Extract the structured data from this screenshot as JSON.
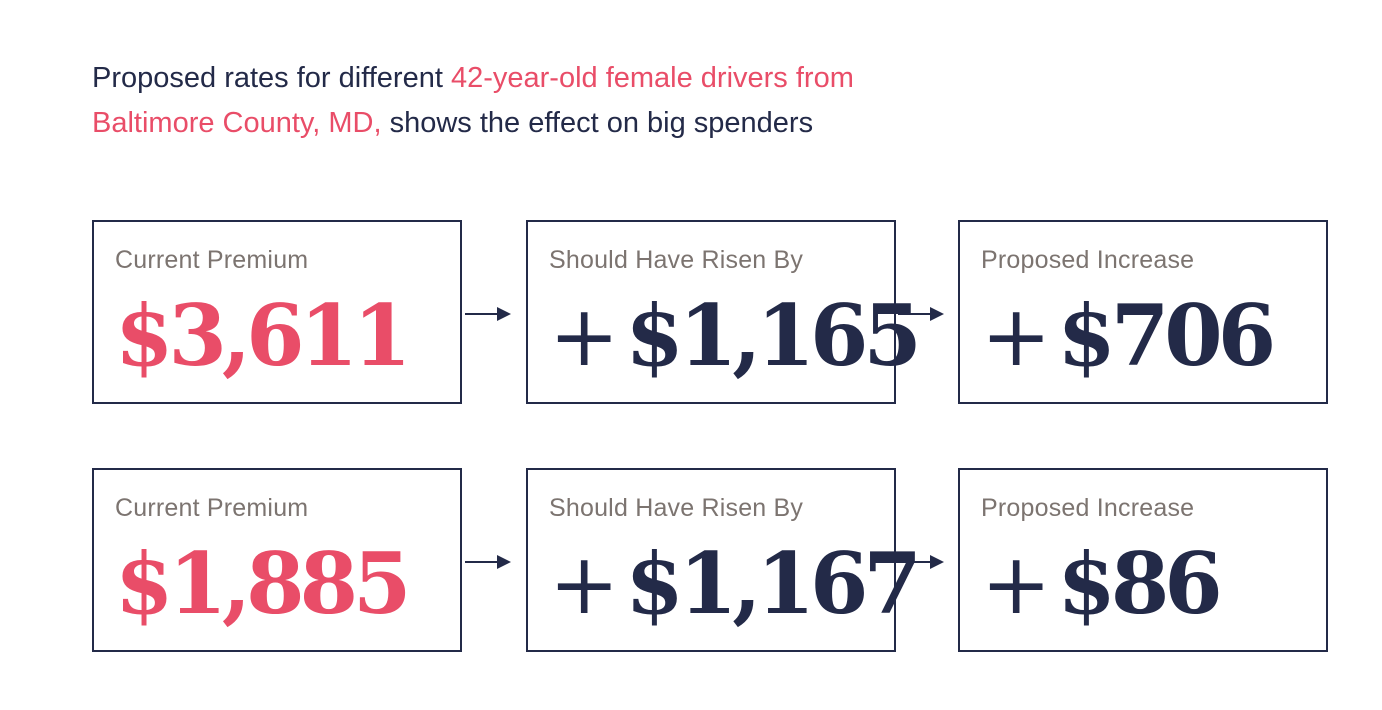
{
  "headline": {
    "part1": "Proposed rates for different ",
    "highlight": "42-year-old female drivers from Baltimore County, MD,",
    "part2": " shows the effect on big spenders"
  },
  "colors": {
    "accent": "#e94d68",
    "navy": "#232a48",
    "label_gray": "#7c7470"
  },
  "rows": [
    {
      "current": {
        "label": "Current Premium",
        "value": "$3,611"
      },
      "should": {
        "label": "Should Have Risen By",
        "plus": "+",
        "value": "$1,165"
      },
      "proposed": {
        "label": "Proposed Increase",
        "plus": "+",
        "value": "$706"
      }
    },
    {
      "current": {
        "label": "Current Premium",
        "value": "$1,885"
      },
      "should": {
        "label": "Should Have Risen By",
        "plus": "+",
        "value": "$1,167"
      },
      "proposed": {
        "label": "Proposed Increase",
        "plus": "+",
        "value": "$86"
      }
    }
  ],
  "icons": {
    "arrow": "arrow-right-icon"
  }
}
